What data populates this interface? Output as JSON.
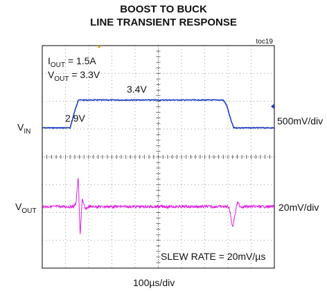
{
  "title_line1": "BOOST TO BUCK",
  "title_line2": "LINE TRANSIENT RESPONSE",
  "figure_id": "toc19",
  "conditions": {
    "iout": {
      "main": "I",
      "sub": "OUT",
      "rest": " = 1.5A"
    },
    "vout": {
      "main": "V",
      "sub": "OUT",
      "rest": " = 3.3V"
    }
  },
  "channels": {
    "vin": {
      "main": "V",
      "sub": "IN",
      "scale": "500mV/div"
    },
    "vout": {
      "main": "V",
      "sub": "OUT",
      "scale": "20mV/div"
    }
  },
  "annotations": {
    "low": "2.9V",
    "high": "3.4V",
    "slew": "SLEW RATE = 20mV/µs"
  },
  "xscale": "100µs/div",
  "colors": {
    "vin": "#1f3fbf",
    "vout": "#e020e0",
    "grid": "#9a9a9a",
    "frame": "#000000",
    "marker": "#e08a00"
  },
  "chart_data": {
    "type": "line",
    "grid": {
      "x_divisions": 10,
      "y_divisions": 8
    },
    "xlabel": "100µs/div",
    "series": [
      {
        "label": "V_IN",
        "unit": "V",
        "x_us": [
          0,
          120,
          140,
          155,
          160,
          780,
          795,
          812,
          825,
          1000
        ],
        "values": [
          2.9,
          2.9,
          3.2,
          3.4,
          3.4,
          3.4,
          3.3,
          3.05,
          2.9,
          2.9
        ]
      },
      {
        "label": "V_OUT",
        "unit": "mV deviation",
        "x_us": [
          0,
          135,
          145,
          155,
          163,
          172,
          185,
          200,
          780,
          805,
          820,
          830,
          840,
          855,
          1000
        ],
        "values": [
          0,
          0,
          2,
          22,
          -22,
          6,
          -2,
          0,
          0,
          0,
          -15,
          -6,
          3,
          0,
          0
        ]
      }
    ]
  }
}
